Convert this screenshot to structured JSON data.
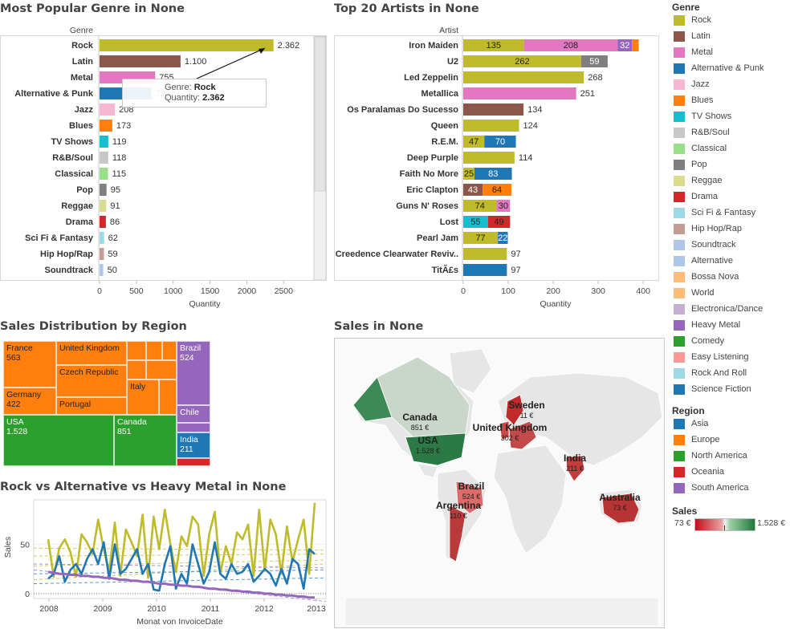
{
  "titles": {
    "genre": "Most Popular Genre in None",
    "artists": "Top 20 Artists in None",
    "region": "Sales Distribution by Region",
    "map": "Sales in None",
    "lines": "Rock vs Alternative vs Heavy Metal in None"
  },
  "colors": {
    "Rock": "#bfbb2a",
    "Latin": "#8c564b",
    "Metal": "#e377c2",
    "Alternative & Punk": "#1f77b4",
    "Jazz": "#f7b6d2",
    "Blues": "#ff7f0e",
    "TV Shows": "#17becf",
    "R&B/Soul": "#c7c7c7",
    "Classical": "#98df8a",
    "Pop": "#7f7f7f",
    "Reggae": "#dbdb8d",
    "Drama": "#d62728",
    "Sci Fi & Fantasy": "#9edae5",
    "Hip Hop/Rap": "#c49c94",
    "Soundtrack": "#aec7e8",
    "Alternative": "#aec7e8",
    "Bossa Nova": "#ffbb78",
    "World": "#ffbb78",
    "Electronica/Dance": "#c5b0d5",
    "Heavy Metal": "#9467bd",
    "Comedy": "#2ca02c",
    "Easy Listening": "#ff9896",
    "Rock And Roll": "#9edae5",
    "Science Fiction": "#1f77b4"
  },
  "legend": {
    "genre_title": "Genre",
    "genres": [
      "Rock",
      "Latin",
      "Metal",
      "Alternative & Punk",
      "Jazz",
      "Blues",
      "TV Shows",
      "R&B/Soul",
      "Classical",
      "Pop",
      "Reggae",
      "Drama",
      "Sci Fi & Fantasy",
      "Hip Hop/Rap",
      "Soundtrack",
      "Alternative",
      "Bossa Nova",
      "World",
      "Electronica/Dance",
      "Heavy Metal",
      "Comedy",
      "Easy Listening",
      "Rock And Roll",
      "Science Fiction"
    ],
    "region_title": "Region",
    "regions": [
      {
        "name": "Asia",
        "color": "#1f77b4"
      },
      {
        "name": "Europe",
        "color": "#ff7f0e"
      },
      {
        "name": "North  America",
        "color": "#2ca02c"
      },
      {
        "name": "Oceania",
        "color": "#d62728"
      },
      {
        "name": "South America",
        "color": "#9467bd"
      }
    ],
    "sales_title": "Sales",
    "sales_min": "73 €",
    "sales_max": "1.528 €"
  },
  "tooltip": {
    "genre_label": "Genre:",
    "genre_value": "Rock",
    "qty_label": "Quantity:",
    "qty_value": "2.362"
  },
  "treemap": {
    "cells": [
      {
        "label": "France",
        "value": "563",
        "region": "Europe"
      },
      {
        "label": "United Kingdom",
        "value": "",
        "region": "Europe"
      },
      {
        "label": "Germany",
        "value": "422",
        "region": "Europe"
      },
      {
        "label": "Czech Republic",
        "value": "",
        "region": "Europe"
      },
      {
        "label": "Portugal",
        "value": "",
        "region": "Europe"
      },
      {
        "label": "Italy",
        "value": "",
        "region": "Europe"
      },
      {
        "label": "Brazil",
        "value": "524",
        "region": "South America"
      },
      {
        "label": "Chile",
        "value": "",
        "region": "South America"
      },
      {
        "label": "USA",
        "value": "1.528",
        "region": "North  America"
      },
      {
        "label": "Canada",
        "value": "851",
        "region": "North  America"
      },
      {
        "label": "India",
        "value": "211",
        "region": "Asia"
      }
    ]
  },
  "map_labels": [
    {
      "name": "Canada",
      "value": "851 €"
    },
    {
      "name": "USA",
      "value": "1.528 €"
    },
    {
      "name": "Sweden",
      "value": "11 €"
    },
    {
      "name": "United Kingdom",
      "value": "302 €"
    },
    {
      "name": "India",
      "value": "211 €"
    },
    {
      "name": "Brazil",
      "value": "524 €"
    },
    {
      "name": "Argentina",
      "value": "110 €"
    },
    {
      "name": "Australia",
      "value": "73 €"
    }
  ],
  "chart_data": [
    {
      "type": "bar",
      "title": "Most Popular Genre in None",
      "ylabel": "Genre",
      "xlabel": "Quantity",
      "xlim": [
        0,
        2900
      ],
      "xticks": [
        0,
        500,
        1000,
        1500,
        2000,
        2500
      ],
      "categories": [
        "Rock",
        "Latin",
        "Metal",
        "Alternative & Punk",
        "Jazz",
        "Blues",
        "TV Shows",
        "R&B/Soul",
        "Classical",
        "Pop",
        "Reggae",
        "Drama",
        "Sci Fi & Fantasy",
        "Hip Hop/Rap",
        "Soundtrack"
      ],
      "values": [
        2362,
        1100,
        755,
        707,
        208,
        173,
        119,
        118,
        115,
        95,
        91,
        86,
        62,
        59,
        50
      ],
      "value_labels": [
        "2.362",
        "1.100",
        "755",
        "707",
        "208",
        "173",
        "119",
        "118",
        "115",
        "95",
        "91",
        "86",
        "62",
        "59",
        "50"
      ]
    },
    {
      "type": "bar",
      "stacked": true,
      "title": "Top 20 Artists in None",
      "ylabel": "Artist",
      "xlabel": "Quantity",
      "xlim": [
        0,
        430
      ],
      "xticks": [
        0,
        100,
        200,
        300,
        400
      ],
      "categories": [
        "Iron Maiden",
        "U2",
        "Led Zeppelin",
        "Metallica",
        "Os Paralamas Do Sucesso",
        "Queen",
        "R.E.M.",
        "Deep Purple",
        "Faith No More",
        "Eric Clapton",
        "Guns N' Roses",
        "Lost",
        "Pearl Jam",
        "Creedence Clearwater Reviv..",
        "TitÃ£s"
      ],
      "stacks": [
        [
          {
            "genre": "Rock",
            "value": 135,
            "label": "135"
          },
          {
            "genre": "Metal",
            "value": 208,
            "label": "208"
          },
          {
            "genre": "Heavy Metal",
            "value": 32,
            "label": "32"
          },
          {
            "genre": "Blues",
            "value": 15,
            "label": ""
          }
        ],
        [
          {
            "genre": "Rock",
            "value": 262,
            "label": "262"
          },
          {
            "genre": "Pop",
            "value": 59,
            "label": "59"
          }
        ],
        [
          {
            "genre": "Rock",
            "value": 268,
            "label": "268"
          }
        ],
        [
          {
            "genre": "Metal",
            "value": 251,
            "label": "251"
          }
        ],
        [
          {
            "genre": "Latin",
            "value": 134,
            "label": "134"
          }
        ],
        [
          {
            "genre": "Rock",
            "value": 124,
            "label": "124"
          }
        ],
        [
          {
            "genre": "Rock",
            "value": 47,
            "label": "47"
          },
          {
            "genre": "Alternative & Punk",
            "value": 70,
            "label": "70"
          }
        ],
        [
          {
            "genre": "Rock",
            "value": 114,
            "label": "114"
          }
        ],
        [
          {
            "genre": "Rock",
            "value": 25,
            "label": "25"
          },
          {
            "genre": "Alternative & Punk",
            "value": 83,
            "label": "83"
          }
        ],
        [
          {
            "genre": "Latin",
            "value": 43,
            "label": "43"
          },
          {
            "genre": "Blues",
            "value": 64,
            "label": "64"
          }
        ],
        [
          {
            "genre": "Rock",
            "value": 74,
            "label": "74"
          },
          {
            "genre": "Metal",
            "value": 30,
            "label": "30"
          }
        ],
        [
          {
            "genre": "TV Shows",
            "value": 55,
            "label": "55"
          },
          {
            "genre": "Drama",
            "value": 49,
            "label": "49"
          }
        ],
        [
          {
            "genre": "Rock",
            "value": 77,
            "label": "77"
          },
          {
            "genre": "Alternative & Punk",
            "value": 22,
            "label": "22"
          }
        ],
        [
          {
            "genre": "Rock",
            "value": 97,
            "label": "97"
          }
        ],
        [
          {
            "genre": "Alternative & Punk",
            "value": 97,
            "label": "97"
          }
        ]
      ]
    },
    {
      "type": "line",
      "title": "Rock vs Alternative vs Heavy Metal in None",
      "xlabel": "Monat von InvoiceDate",
      "ylabel": "Sales",
      "ylim": [
        -5,
        95
      ],
      "yticks": [
        0,
        50
      ],
      "xticks": [
        "2008",
        "2009",
        "2010",
        "2011",
        "2012",
        "2013"
      ],
      "series": [
        {
          "genre": "Rock",
          "values": [
            55,
            17,
            46,
            55,
            42,
            17,
            60,
            52,
            40,
            75,
            45,
            22,
            72,
            18,
            65,
            52,
            38,
            80,
            16,
            78,
            45,
            85,
            50,
            22,
            58,
            48,
            78,
            70,
            18,
            60,
            83,
            20,
            48,
            30,
            62,
            55,
            70,
            18,
            85,
            23,
            75,
            60,
            20,
            68,
            32,
            55,
            75,
            20,
            92
          ]
        },
        {
          "genre": "Alternative & Punk",
          "values": [
            15,
            20,
            38,
            12,
            24,
            30,
            20,
            35,
            45,
            30,
            52,
            15,
            50,
            20,
            25,
            35,
            45,
            20,
            30,
            4,
            3,
            30,
            48,
            5,
            20,
            10,
            50,
            30,
            10,
            22,
            52,
            20,
            15,
            30,
            20,
            22,
            30,
            12,
            18,
            25,
            20,
            8,
            25,
            10,
            35,
            30,
            5,
            45,
            40
          ]
        },
        {
          "genre": "Heavy Metal",
          "values": [
            22,
            21,
            20,
            20,
            19,
            19,
            18,
            18,
            17,
            17,
            16,
            16,
            15,
            14,
            14,
            13,
            13,
            12,
            12,
            11,
            10,
            10,
            9,
            9,
            8,
            8,
            7,
            7,
            6,
            5,
            5,
            4,
            4,
            3,
            3,
            2,
            2,
            1,
            1,
            0,
            0,
            -1,
            -1,
            -2,
            -2,
            -3,
            -3,
            -4,
            -4
          ]
        }
      ],
      "trend_lines": true
    }
  ]
}
